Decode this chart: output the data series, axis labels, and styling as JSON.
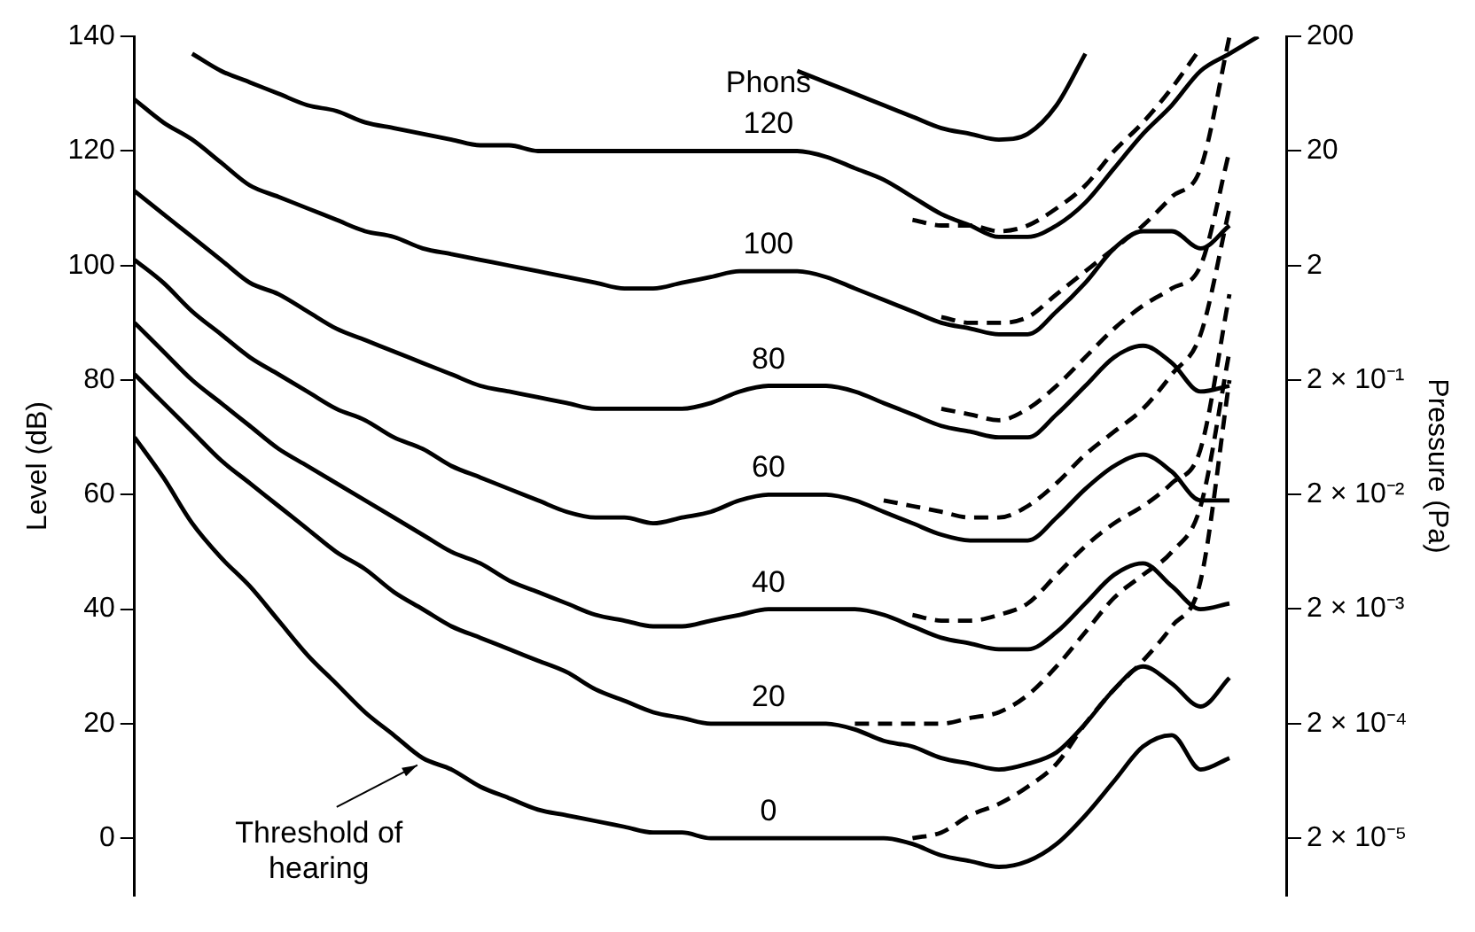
{
  "chart_data": {
    "type": "line",
    "ylabel": "Level (dB)",
    "y2label": "Pressure (Pa)",
    "categories": [
      null,
      null,
      null,
      null,
      null,
      null,
      null,
      null,
      null,
      null,
      null,
      null,
      null,
      null,
      null,
      null,
      null,
      null,
      null,
      null,
      null,
      null,
      null,
      null,
      null,
      null,
      null,
      null,
      null,
      null,
      null,
      null,
      null,
      null,
      null,
      null,
      null,
      null,
      null,
      null,
      null
    ],
    "ylim": [
      -10,
      140
    ],
    "yticks": [
      0,
      20,
      40,
      60,
      80,
      100,
      120,
      140
    ],
    "y2lim": [
      6.3e-06,
      200
    ],
    "y2ticks": [
      200,
      20,
      2,
      {
        "value": 0.2,
        "label": "2 × 10⁻¹"
      },
      {
        "value": 0.02,
        "label": "2 × 10⁻²"
      },
      {
        "value": 0.002,
        "label": "2 × 10⁻³"
      },
      {
        "value": 0.0002,
        "label": "2 × 10⁻⁴"
      },
      {
        "value": 2e-05,
        "label": "2 × 10⁻⁵"
      }
    ],
    "log": "y2",
    "grid": false,
    "legend": false,
    "marker": "none",
    "line_style": "solid",
    "annotations": [
      "Phons",
      "Threshold of hearing"
    ],
    "series": [
      {
        "name": "0",
        "color": "#000000",
        "values": [
          70,
          63,
          55,
          49,
          44,
          38,
          32,
          27,
          22,
          18,
          14,
          12,
          9,
          7,
          5,
          4,
          3,
          2,
          1,
          1,
          0,
          0,
          0,
          0,
          0,
          0,
          0,
          -1,
          -3,
          -4,
          -5,
          -4,
          -1,
          4,
          10,
          16,
          18,
          12,
          14,
          null,
          null
        ]
      },
      {
        "name": "20",
        "color": "#000000",
        "values": [
          81,
          76,
          71,
          66,
          62,
          58,
          54,
          50,
          47,
          43,
          40,
          37,
          35,
          33,
          31,
          29,
          26,
          24,
          22,
          21,
          20,
          20,
          20,
          20,
          20,
          19,
          17,
          16,
          14,
          13,
          12,
          13,
          15,
          20,
          26,
          30,
          27,
          23,
          28,
          null,
          null
        ]
      },
      {
        "name": "40",
        "color": "#000000",
        "values": [
          90,
          85,
          80,
          76,
          72,
          68,
          65,
          62,
          59,
          56,
          53,
          50,
          48,
          45,
          43,
          41,
          39,
          38,
          37,
          37,
          38,
          39,
          40,
          40,
          40,
          40,
          39,
          37,
          35,
          34,
          33,
          33,
          36,
          41,
          46,
          48,
          44,
          40,
          41,
          null,
          null
        ]
      },
      {
        "name": "60",
        "color": "#000000",
        "values": [
          101,
          97,
          92,
          88,
          84,
          81,
          78,
          75,
          73,
          70,
          68,
          65,
          63,
          61,
          59,
          57,
          56,
          56,
          55,
          56,
          57,
          59,
          60,
          60,
          60,
          59,
          57,
          55,
          53,
          52,
          52,
          52,
          56,
          61,
          65,
          67,
          64,
          59,
          59,
          null,
          null
        ]
      },
      {
        "name": "80",
        "color": "#000000",
        "values": [
          113,
          109,
          105,
          101,
          97,
          95,
          92,
          89,
          87,
          85,
          83,
          81,
          79,
          78,
          77,
          76,
          75,
          75,
          75,
          75,
          76,
          78,
          79,
          79,
          79,
          78,
          76,
          74,
          72,
          71,
          70,
          70,
          74,
          79,
          84,
          86,
          83,
          78,
          79,
          null,
          null
        ]
      },
      {
        "name": "100",
        "color": "#000000",
        "values": [
          129,
          125,
          122,
          118,
          114,
          112,
          110,
          108,
          106,
          105,
          103,
          102,
          101,
          100,
          99,
          98,
          97,
          96,
          96,
          97,
          98,
          99,
          99,
          99,
          98,
          96,
          94,
          92,
          90,
          89,
          88,
          88,
          92,
          97,
          103,
          106,
          106,
          103,
          107,
          null,
          null
        ]
      },
      {
        "name": "120",
        "color": "#000000",
        "values": [
          null,
          null,
          137,
          134,
          132,
          130,
          128,
          127,
          125,
          124,
          123,
          122,
          121,
          121,
          120,
          120,
          120,
          120,
          120,
          120,
          120,
          120,
          120,
          120,
          119,
          117,
          115,
          112,
          109,
          107,
          105,
          105,
          107,
          111,
          117,
          123,
          128,
          134,
          137,
          140,
          null
        ]
      },
      {
        "color": "#000000",
        "values": [
          null,
          null,
          null,
          null,
          null,
          null,
          null,
          null,
          null,
          null,
          null,
          null,
          null,
          null,
          null,
          null,
          null,
          null,
          null,
          null,
          null,
          null,
          null,
          134,
          132,
          130,
          128,
          126,
          124,
          123,
          122,
          123,
          128,
          137,
          null,
          null,
          null,
          null,
          null,
          null,
          null
        ]
      },
      {
        "color": "#000000",
        "line_style": "dashed",
        "values": [
          null,
          null,
          null,
          null,
          null,
          null,
          null,
          null,
          null,
          null,
          null,
          null,
          null,
          null,
          null,
          null,
          null,
          null,
          null,
          null,
          null,
          null,
          null,
          null,
          null,
          null,
          null,
          0,
          1,
          4,
          6,
          9,
          13,
          20,
          26,
          31,
          37,
          45,
          80,
          null,
          null
        ]
      },
      {
        "color": "#000000",
        "line_style": "dashed",
        "values": [
          null,
          null,
          null,
          null,
          null,
          null,
          null,
          null,
          null,
          null,
          null,
          null,
          null,
          null,
          null,
          null,
          null,
          null,
          null,
          null,
          null,
          null,
          null,
          null,
          null,
          20,
          20,
          20,
          20,
          21,
          22,
          25,
          30,
          36,
          42,
          46,
          50,
          58,
          85,
          null,
          null
        ]
      },
      {
        "color": "#000000",
        "line_style": "dashed",
        "values": [
          null,
          null,
          null,
          null,
          null,
          null,
          null,
          null,
          null,
          null,
          null,
          null,
          null,
          null,
          null,
          null,
          null,
          null,
          null,
          null,
          null,
          null,
          null,
          null,
          null,
          null,
          null,
          39,
          38,
          38,
          39,
          41,
          46,
          51,
          55,
          58,
          62,
          68,
          95,
          null,
          null
        ]
      },
      {
        "color": "#000000",
        "line_style": "dashed",
        "values": [
          null,
          null,
          null,
          null,
          null,
          null,
          null,
          null,
          null,
          null,
          null,
          null,
          null,
          null,
          null,
          null,
          null,
          null,
          null,
          null,
          null,
          null,
          null,
          null,
          null,
          null,
          59,
          58,
          57,
          56,
          56,
          58,
          62,
          67,
          71,
          75,
          81,
          88,
          110,
          null,
          null
        ]
      },
      {
        "color": "#000000",
        "line_style": "dashed",
        "values": [
          null,
          null,
          null,
          null,
          null,
          null,
          null,
          null,
          null,
          null,
          null,
          null,
          null,
          null,
          null,
          null,
          null,
          null,
          null,
          null,
          null,
          null,
          null,
          null,
          null,
          null,
          null,
          null,
          75,
          74,
          73,
          75,
          79,
          84,
          89,
          93,
          96,
          100,
          120,
          null,
          null
        ]
      },
      {
        "color": "#000000",
        "line_style": "dashed",
        "values": [
          null,
          null,
          null,
          null,
          null,
          null,
          null,
          null,
          null,
          null,
          null,
          null,
          null,
          null,
          null,
          null,
          null,
          null,
          null,
          null,
          null,
          null,
          null,
          null,
          null,
          null,
          null,
          null,
          91,
          90,
          90,
          91,
          95,
          99,
          103,
          107,
          112,
          117,
          140,
          null,
          null
        ]
      },
      {
        "color": "#000000",
        "line_style": "dashed",
        "values": [
          null,
          null,
          null,
          null,
          null,
          null,
          null,
          null,
          null,
          null,
          null,
          null,
          null,
          null,
          null,
          null,
          null,
          null,
          null,
          null,
          null,
          null,
          null,
          null,
          null,
          null,
          null,
          108,
          107,
          107,
          106,
          107,
          110,
          114,
          120,
          125,
          131,
          138,
          null,
          null,
          null
        ]
      }
    ]
  }
}
